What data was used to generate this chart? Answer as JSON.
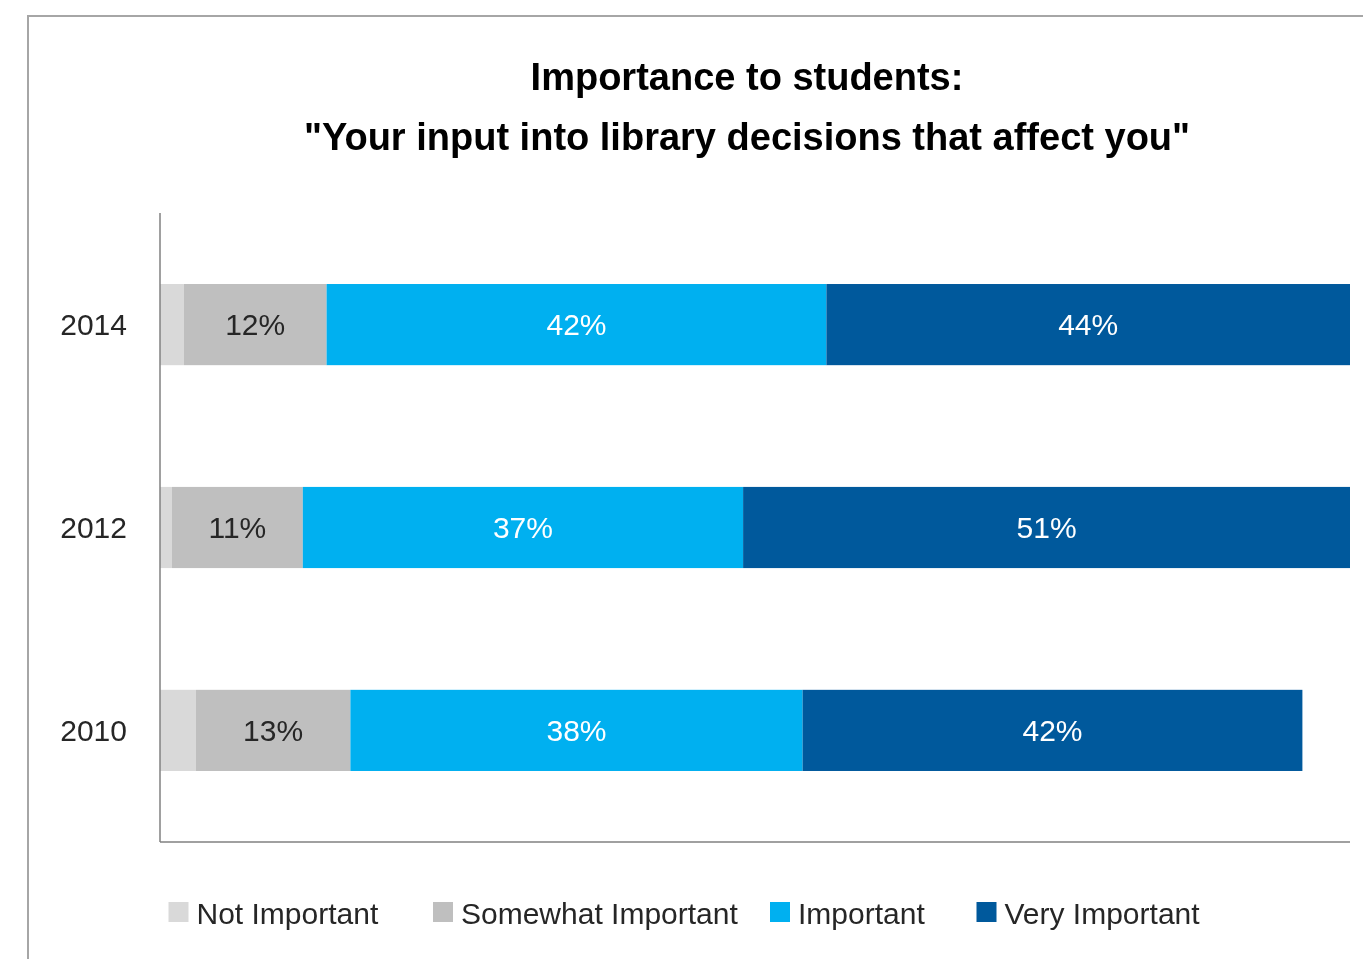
{
  "chart_data": {
    "type": "bar",
    "orientation": "horizontal",
    "stacked": true,
    "title": "Importance to students:\n\"Your input into library decisions that affect you\"",
    "categories": [
      "2014",
      "2012",
      "2010"
    ],
    "series": [
      {
        "name": "Not Important",
        "color": "#d9d9d9",
        "values": [
          2,
          1,
          3
        ],
        "value_labels": [
          null,
          null,
          null
        ]
      },
      {
        "name": "Somewhat Important",
        "color": "#bfbfbf",
        "values": [
          12,
          11,
          13
        ],
        "value_labels": [
          "12%",
          "11%",
          "13%"
        ]
      },
      {
        "name": "Important",
        "color": "#00b0f0",
        "values": [
          42,
          37,
          38
        ],
        "value_labels": [
          "42%",
          "37%",
          "38%"
        ]
      },
      {
        "name": "Very Important",
        "color": "#00599c",
        "values": [
          44,
          51,
          42
        ],
        "value_labels": [
          "44%",
          "51%",
          "42%"
        ]
      }
    ],
    "xlim": [
      0,
      100
    ],
    "tick_labels": "y",
    "legend": "bottom"
  }
}
